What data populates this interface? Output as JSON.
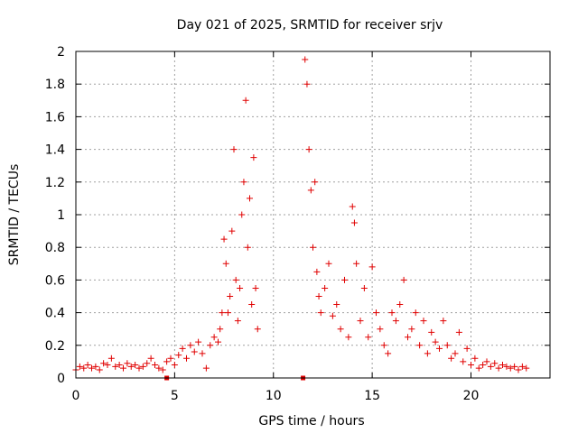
{
  "chart_data": {
    "type": "scatter",
    "title": "Day 021 of 2025, SRMTID for receiver srjv",
    "xlabel": "GPS time / hours",
    "ylabel": "SRMTID / TECUs",
    "xlim": [
      0,
      24
    ],
    "ylim": [
      0,
      2
    ],
    "x_ticks": [
      0,
      5,
      10,
      15,
      20
    ],
    "x_tick_labels": [
      "0",
      "5",
      "10",
      "15",
      "20"
    ],
    "y_ticks": [
      0,
      0.2,
      0.4,
      0.6,
      0.8,
      1,
      1.2,
      1.4,
      1.6,
      1.8,
      2
    ],
    "y_tick_labels": [
      "0",
      "0.2",
      "0.4",
      "0.6",
      "0.8",
      "1",
      "1.2",
      "1.4",
      "1.6",
      "1.8",
      "2"
    ],
    "grid": true,
    "marker": "plus",
    "color": "#e00000",
    "series": [
      {
        "name": "SRMTID",
        "x": [
          0.0,
          0.2,
          0.4,
          0.6,
          0.8,
          1.0,
          1.2,
          1.4,
          1.6,
          1.8,
          2.0,
          2.2,
          2.4,
          2.6,
          2.8,
          3.0,
          3.2,
          3.4,
          3.6,
          3.8,
          4.0,
          4.2,
          4.4,
          4.6,
          4.8,
          5.0,
          5.2,
          5.4,
          5.6,
          5.8,
          6.0,
          6.2,
          6.4,
          6.6,
          6.8,
          7.0,
          7.2,
          7.3,
          7.4,
          7.5,
          7.6,
          7.7,
          7.8,
          7.9,
          8.0,
          8.1,
          8.2,
          8.3,
          8.4,
          8.5,
          8.6,
          8.7,
          8.8,
          8.9,
          9.0,
          9.1,
          9.2,
          11.6,
          11.7,
          11.8,
          11.9,
          12.0,
          12.1,
          12.2,
          12.3,
          12.4,
          12.6,
          12.8,
          13.0,
          13.2,
          13.4,
          13.6,
          13.8,
          14.0,
          14.1,
          14.2,
          14.4,
          14.6,
          14.8,
          15.0,
          15.2,
          15.4,
          15.6,
          15.8,
          16.0,
          16.2,
          16.4,
          16.6,
          16.8,
          17.0,
          17.2,
          17.4,
          17.6,
          17.8,
          18.0,
          18.2,
          18.4,
          18.6,
          18.8,
          19.0,
          19.2,
          19.4,
          19.6,
          19.8,
          20.0,
          20.2,
          20.4,
          20.6,
          20.8,
          21.0,
          21.2,
          21.4,
          21.6,
          21.8,
          22.0,
          22.2,
          22.4,
          22.6,
          22.8
        ],
        "y": [
          0.05,
          0.07,
          0.06,
          0.08,
          0.06,
          0.07,
          0.05,
          0.09,
          0.08,
          0.12,
          0.07,
          0.08,
          0.06,
          0.09,
          0.07,
          0.08,
          0.06,
          0.07,
          0.09,
          0.12,
          0.08,
          0.06,
          0.05,
          0.1,
          0.12,
          0.08,
          0.14,
          0.18,
          0.12,
          0.2,
          0.16,
          0.22,
          0.15,
          0.06,
          0.2,
          0.25,
          0.22,
          0.3,
          0.4,
          0.85,
          0.7,
          0.4,
          0.5,
          0.9,
          1.4,
          0.6,
          0.35,
          0.55,
          1.0,
          1.2,
          1.7,
          0.8,
          1.1,
          0.45,
          1.35,
          0.55,
          0.3,
          1.95,
          1.8,
          1.4,
          1.15,
          0.8,
          1.2,
          0.65,
          0.5,
          0.4,
          0.55,
          0.7,
          0.38,
          0.45,
          0.3,
          0.6,
          0.25,
          1.05,
          0.95,
          0.7,
          0.35,
          0.55,
          0.25,
          0.68,
          0.4,
          0.3,
          0.2,
          0.15,
          0.4,
          0.35,
          0.45,
          0.6,
          0.25,
          0.3,
          0.4,
          0.2,
          0.35,
          0.15,
          0.28,
          0.22,
          0.18,
          0.35,
          0.2,
          0.12,
          0.15,
          0.28,
          0.1,
          0.18,
          0.08,
          0.12,
          0.06,
          0.08,
          0.1,
          0.07,
          0.09,
          0.06,
          0.08,
          0.07,
          0.06,
          0.07,
          0.05,
          0.07,
          0.06
        ]
      }
    ],
    "markers_at_zero": [
      {
        "x": 4.6,
        "y": 0
      },
      {
        "x": 11.5,
        "y": 0
      }
    ]
  }
}
